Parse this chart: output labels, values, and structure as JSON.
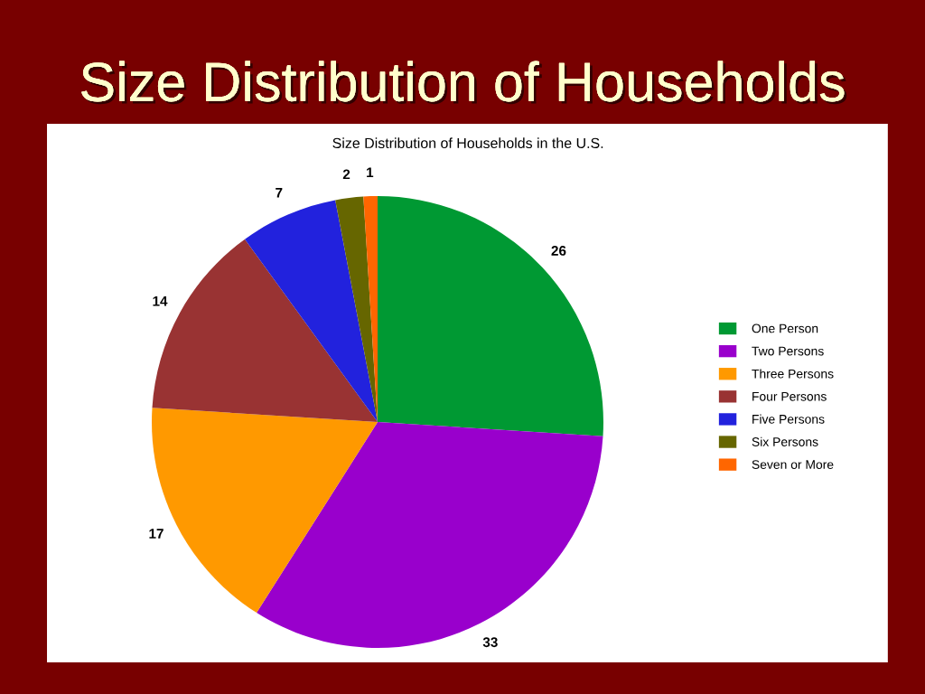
{
  "chart_data": {
    "type": "pie",
    "title": "Size Distribution of Households",
    "subtitle": "Size Distribution of Households in the U.S.",
    "categories": [
      "One Person",
      "Two Persons",
      "Three Persons",
      "Four Persons",
      "Five Persons",
      "Six Persons",
      "Seven or More"
    ],
    "values": [
      26,
      33,
      17,
      14,
      7,
      2,
      1
    ],
    "colors": [
      "#009933",
      "#9900cc",
      "#ff9900",
      "#993333",
      "#2222dd",
      "#666600",
      "#ff6600"
    ],
    "data_labels": true,
    "legend": "right"
  }
}
